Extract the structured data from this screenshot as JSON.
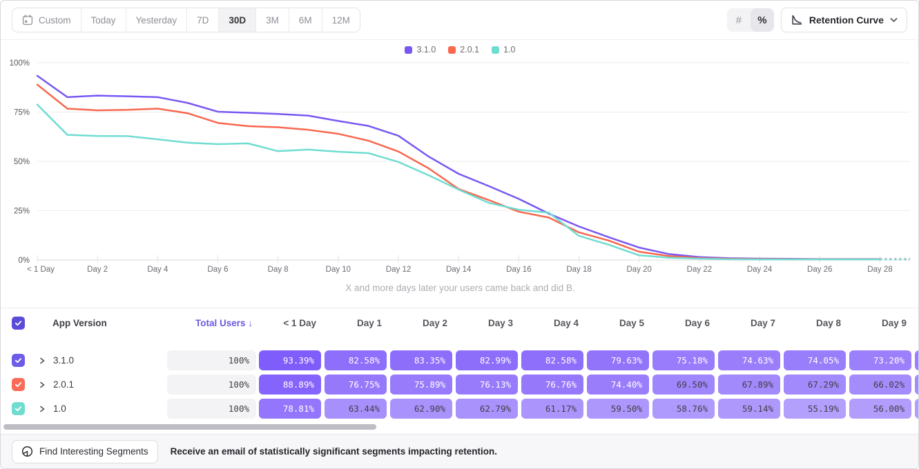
{
  "toolbar": {
    "date_ranges": [
      "Custom",
      "Today",
      "Yesterday",
      "7D",
      "30D",
      "3M",
      "6M",
      "12M"
    ],
    "selected_range": "30D",
    "format_toggle": {
      "options": [
        "#",
        "%"
      ],
      "selected": "%"
    },
    "view_selector": {
      "label": "Retention Curve"
    }
  },
  "chart": {
    "legend": [
      {
        "label": "3.1.0",
        "color": "#7857F2"
      },
      {
        "label": "2.0.1",
        "color": "#F8674E"
      },
      {
        "label": "1.0",
        "color": "#6FDCD1"
      }
    ],
    "subtitle": "X and more days later your users came back and did B."
  },
  "chart_data": {
    "type": "line",
    "title": "",
    "xlabel": "",
    "ylabel": "",
    "ylim": [
      0,
      100
    ],
    "y_tick_labels": [
      "0%",
      "25%",
      "50%",
      "75%",
      "100%"
    ],
    "x": [
      0,
      1,
      2,
      3,
      4,
      5,
      6,
      7,
      8,
      9,
      10,
      11,
      12,
      13,
      14,
      15,
      16,
      17,
      18,
      19,
      20,
      21,
      22,
      23,
      24,
      25,
      26,
      27,
      28,
      29
    ],
    "x_tick_labels": [
      "< 1 Day",
      "Day 2",
      "Day 4",
      "Day 6",
      "Day 8",
      "Day 10",
      "Day 12",
      "Day 14",
      "Day 16",
      "Day 18",
      "Day 20",
      "Day 22",
      "Day 24",
      "Day 26",
      "Day 28"
    ],
    "grid": true,
    "legend_position": "top-center",
    "dashed_tail_from_index": 28,
    "series": [
      {
        "name": "3.1.0",
        "color": "#7857F2",
        "values": [
          93.39,
          82.58,
          83.35,
          82.99,
          82.58,
          79.63,
          75.18,
          74.63,
          74.05,
          73.2,
          70.5,
          68.0,
          63.0,
          52.5,
          43.7,
          37.5,
          31.0,
          23.5,
          17.0,
          11.5,
          6.3,
          3.0,
          1.5,
          0.9,
          0.7,
          0.6,
          0.5,
          0.5,
          0.5,
          0.5
        ]
      },
      {
        "name": "2.0.1",
        "color": "#F8674E",
        "values": [
          88.89,
          76.75,
          75.89,
          76.13,
          76.76,
          74.4,
          69.5,
          67.89,
          67.29,
          66.02,
          64.0,
          60.5,
          55.0,
          46.5,
          36.0,
          30.4,
          24.5,
          21.5,
          14.0,
          9.8,
          4.2,
          2.0,
          1.0,
          0.6,
          0.5,
          0.4,
          0.4,
          0.4,
          0.4,
          0.4
        ]
      },
      {
        "name": "1.0",
        "color": "#6FDCD1",
        "values": [
          78.81,
          63.44,
          62.9,
          62.79,
          61.17,
          59.5,
          58.76,
          59.14,
          55.19,
          56.0,
          54.9,
          54.2,
          49.7,
          43.0,
          35.7,
          29.0,
          25.5,
          24.0,
          12.2,
          7.7,
          2.4,
          1.2,
          0.7,
          0.4,
          0.3,
          0.3,
          0.3,
          0.3,
          0.3,
          0.3
        ]
      }
    ]
  },
  "table": {
    "header": {
      "app_version": "App Version",
      "total_users": "Total Users",
      "sort_arrow": "↓",
      "day_columns": [
        "< 1 Day",
        "Day 1",
        "Day 2",
        "Day 3",
        "Day 4",
        "Day 5",
        "Day 6",
        "Day 7",
        "Day 8",
        "Day 9"
      ],
      "header_checkbox_color": "#5B4BD9"
    },
    "cell_base_rgb": [
      118,
      81,
      250
    ],
    "rows": [
      {
        "label": "3.1.0",
        "checkbox_color": "#6C5CE7",
        "total_users": "100%",
        "values": [
          "93.39%",
          "82.58%",
          "83.35%",
          "82.99%",
          "82.58%",
          "79.63%",
          "75.18%",
          "74.63%",
          "74.05%",
          "73.20%"
        ]
      },
      {
        "label": "2.0.1",
        "checkbox_color": "#F96B57",
        "total_users": "100%",
        "values": [
          "88.89%",
          "76.75%",
          "75.89%",
          "76.13%",
          "76.76%",
          "74.40%",
          "69.50%",
          "67.89%",
          "67.29%",
          "66.02%"
        ]
      },
      {
        "label": "1.0",
        "checkbox_color": "#70DCD0",
        "total_users": "100%",
        "values": [
          "78.81%",
          "63.44%",
          "62.90%",
          "62.79%",
          "61.17%",
          "59.50%",
          "58.76%",
          "59.14%",
          "55.19%",
          "56.00%"
        ]
      }
    ]
  },
  "footer": {
    "button_label": "Find Interesting Segments",
    "message": "Receive an email of statistically significant segments impacting retention."
  }
}
